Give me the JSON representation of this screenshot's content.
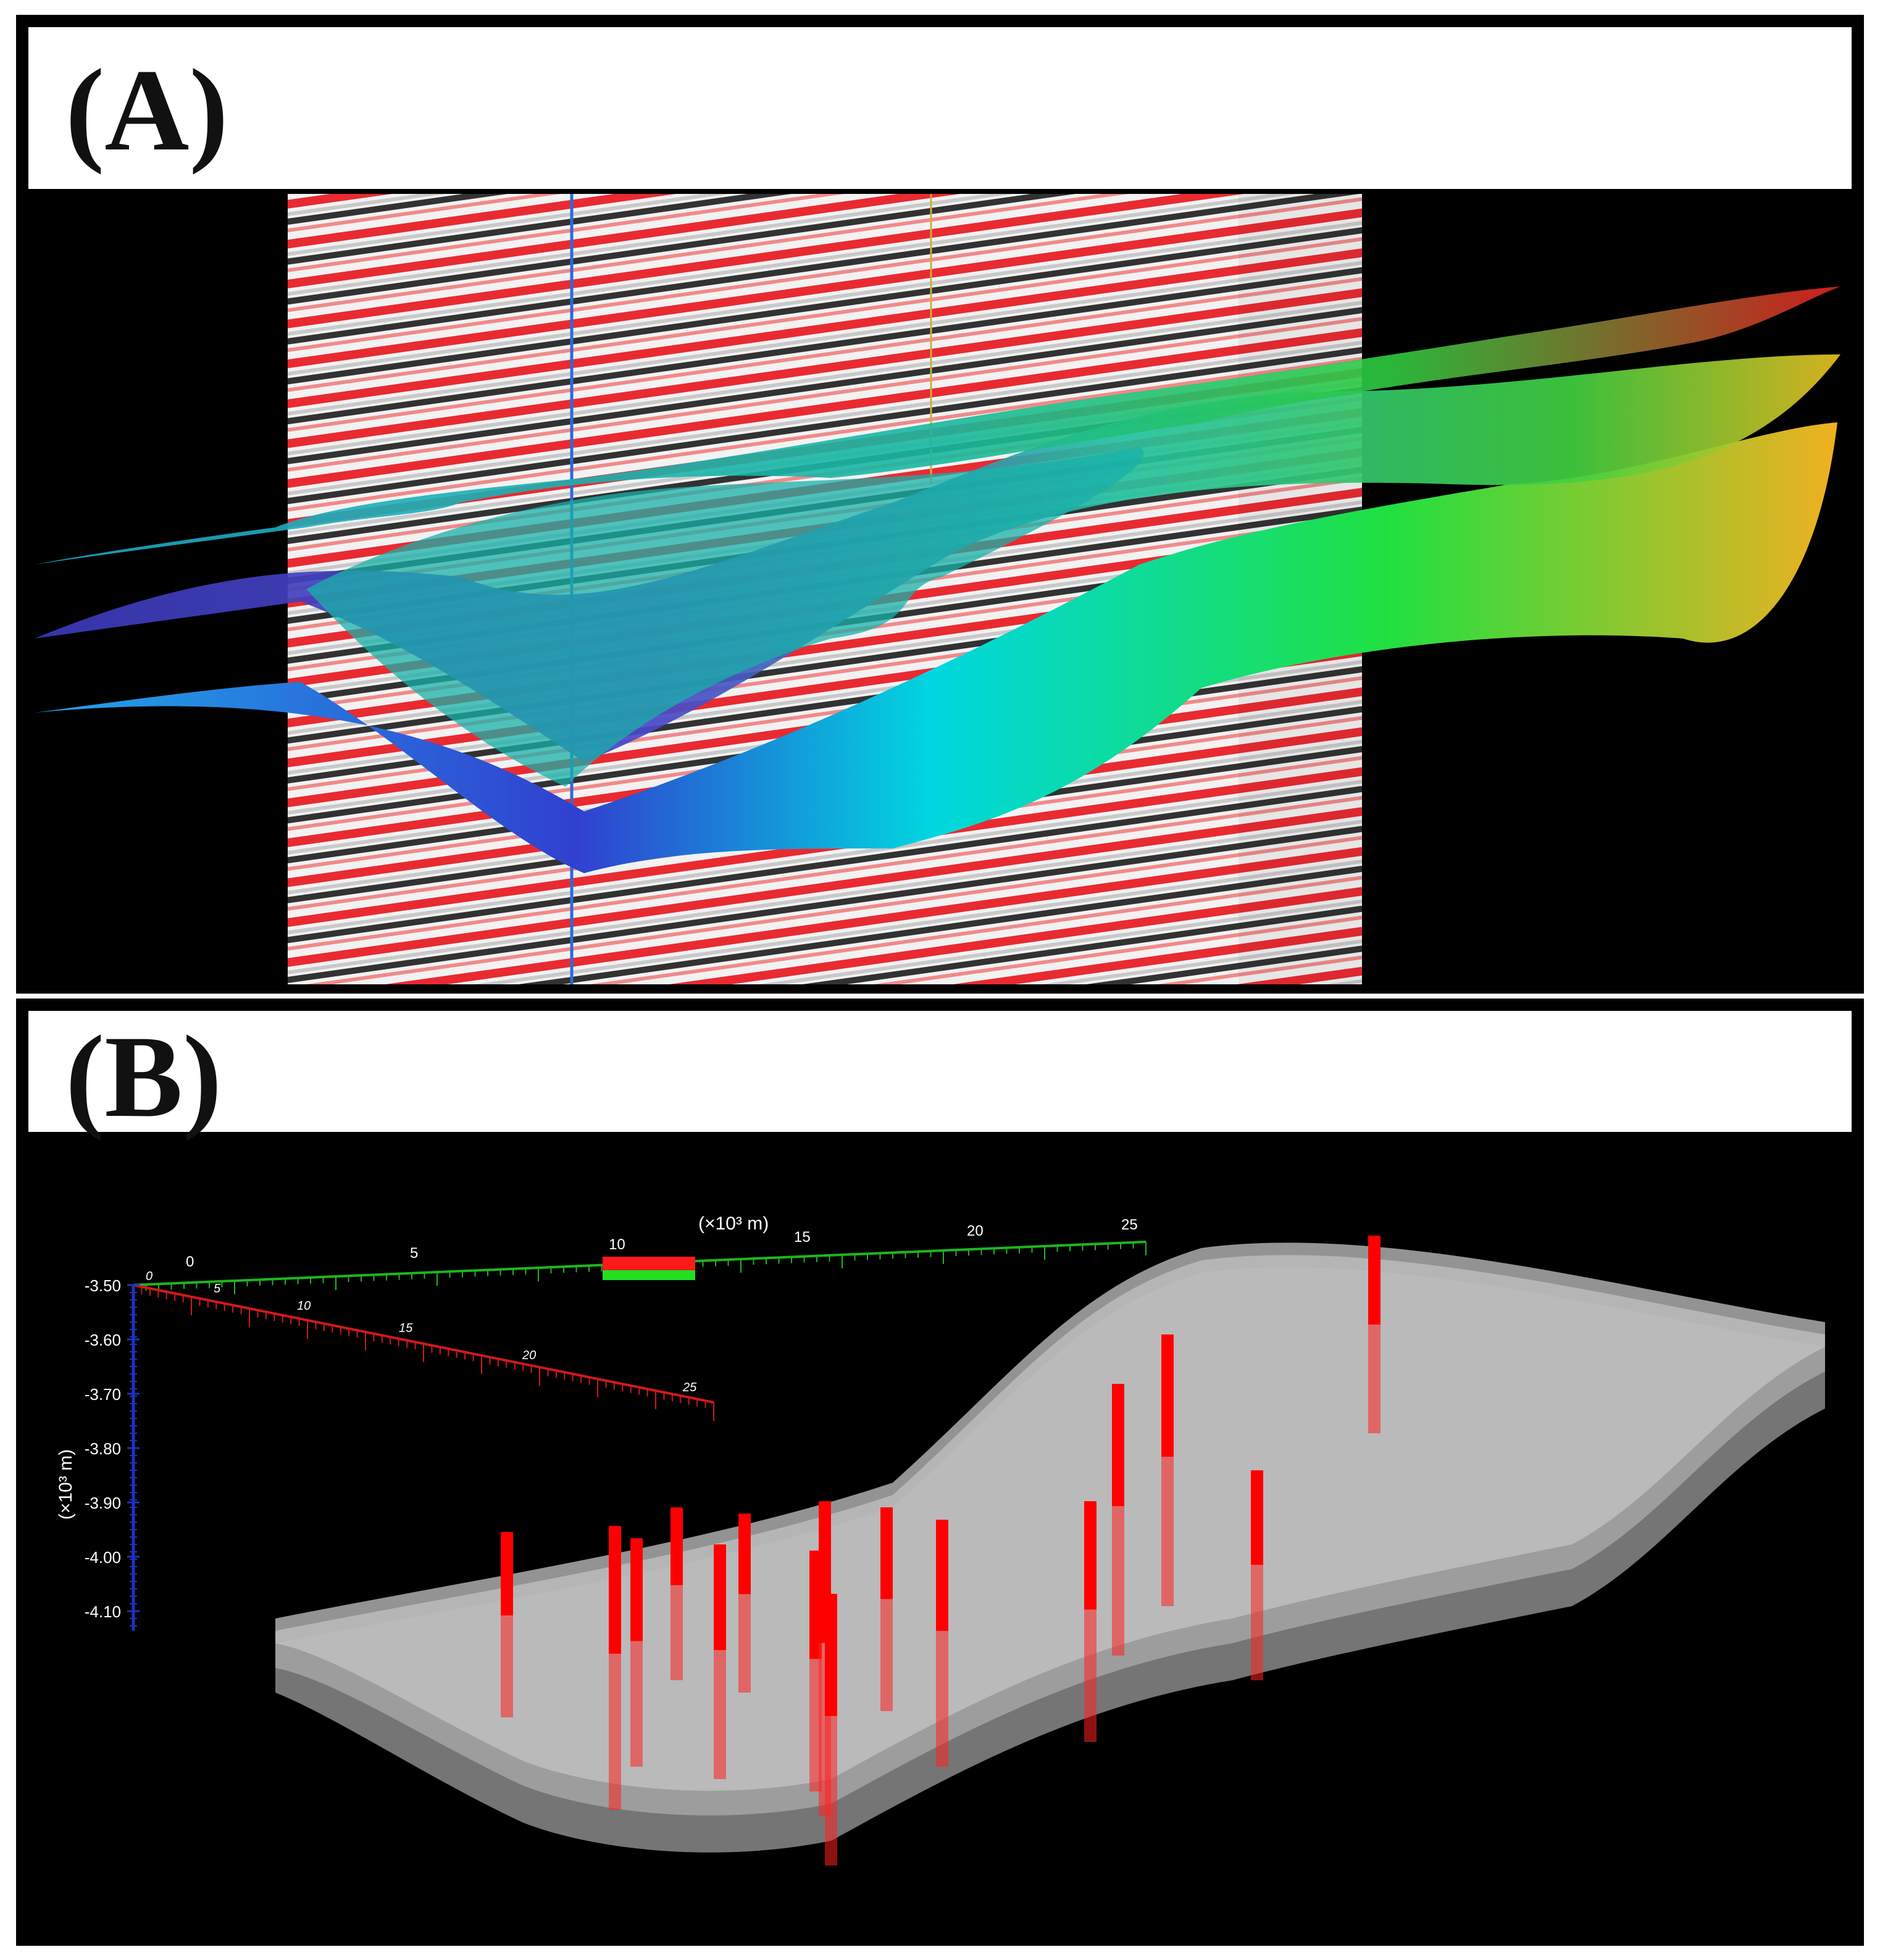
{
  "panels": {
    "a": {
      "label": "(A)"
    },
    "b": {
      "label": "(B)"
    }
  },
  "colors": {
    "background": "#000000",
    "seismic_red": "#e8141c",
    "seismic_black": "#111111",
    "axis_x": "#1fb51f",
    "axis_y": "#d01a1a",
    "axis_z": "#2030c0",
    "well": "#ff0000",
    "reservoir": "#b8b8b8"
  },
  "axes3d": {
    "x_unit": "(×10³ m)",
    "x_ticks": [
      "0",
      "5",
      "10",
      "15",
      "20",
      "25"
    ],
    "y_ticks": [
      "0",
      "5",
      "10",
      "15",
      "20",
      "25"
    ],
    "z_unit": "(×10³ m)",
    "z_ticks": [
      "-3.50",
      "-3.60",
      "-3.70",
      "-3.80",
      "-3.90",
      "-4.00",
      "-4.10"
    ]
  },
  "icons": {
    "horizon_surfaces": "colored-horizon-surfaces",
    "seismic_sections": "seismic-section-panels",
    "wells": "vertical-well-bars",
    "reservoir_layers": "translucent-reservoir-layers"
  }
}
